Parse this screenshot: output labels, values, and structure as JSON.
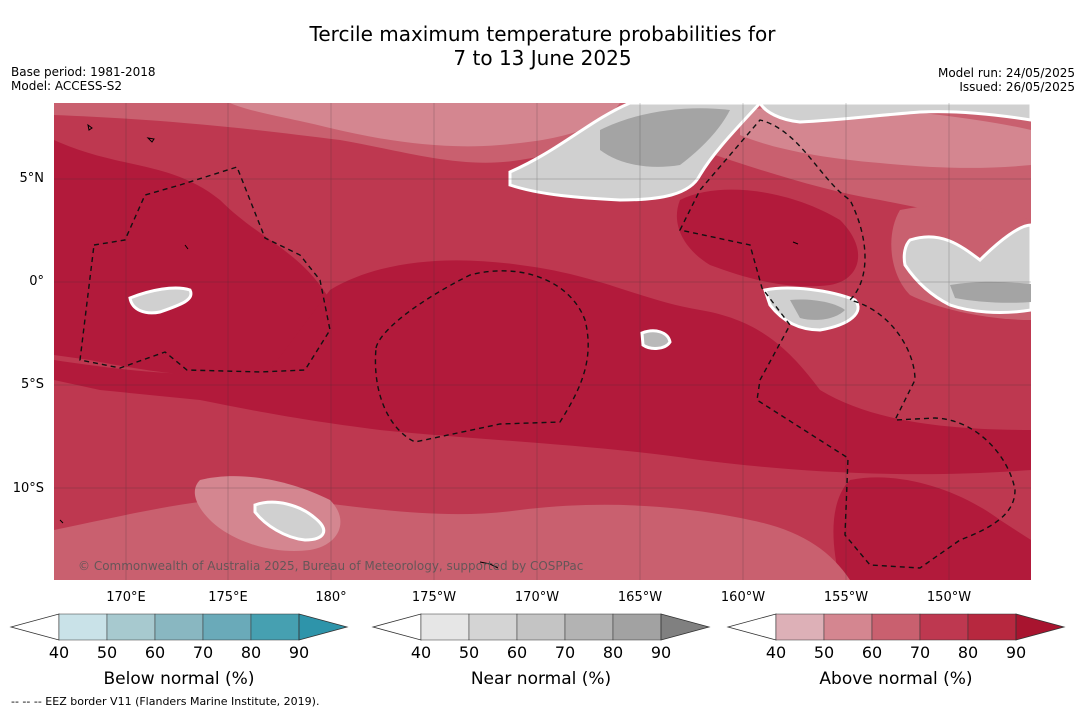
{
  "title": {
    "line1": "Tercile maximum temperature probabilities for",
    "line2": "7 to 13 June 2025"
  },
  "meta": {
    "base_period": "Base period: 1981-2018",
    "model": "Model: ACCESS-S2",
    "model_run": "Model run: 24/05/2025",
    "issued": "Issued: 26/05/2025"
  },
  "map": {
    "lat_labels": [
      "5°N",
      "0°",
      "5°S",
      "10°S"
    ],
    "lon_labels": [
      "170°E",
      "175°E",
      "180°",
      "175°W",
      "170°W",
      "165°W",
      "160°W",
      "155°W",
      "150°W"
    ],
    "credit": "© Commonwealth of Australia 2025, Bureau of Meteorology, supported by COSPPac",
    "colors": {
      "above_90": "#b21a3b",
      "above_80": "#be3850",
      "above_70": "#c9606f",
      "above_60": "#d48690",
      "above_50": "#ddb0b7",
      "near_50": "#d0d0d0",
      "near_60": "#b9b9b9",
      "near_70": "#a4a4a4"
    }
  },
  "legends": [
    {
      "label": "Below normal (%)",
      "ticks": [
        "40",
        "50",
        "60",
        "70",
        "80",
        "90"
      ],
      "colors": [
        "#ffffff",
        "#c9e2e8",
        "#a7c9cf",
        "#89b7c1",
        "#6aaab9",
        "#46a0b1",
        "#2e94aa"
      ]
    },
    {
      "label": "Near normal (%)",
      "ticks": [
        "40",
        "50",
        "60",
        "70",
        "80",
        "90"
      ],
      "colors": [
        "#ffffff",
        "#e6e6e6",
        "#d4d4d4",
        "#c4c4c4",
        "#b3b3b3",
        "#a2a2a2",
        "#808080"
      ]
    },
    {
      "label": "Above normal (%)",
      "ticks": [
        "40",
        "50",
        "60",
        "70",
        "80",
        "90"
      ],
      "colors": [
        "#ffffff",
        "#ddb0b7",
        "#d48690",
        "#c9606f",
        "#be3850",
        "#b7283f",
        "#a8142f"
      ]
    }
  ],
  "footer": "--  --  -- EEZ border V11 (Flanders Marine Institute, 2019)."
}
